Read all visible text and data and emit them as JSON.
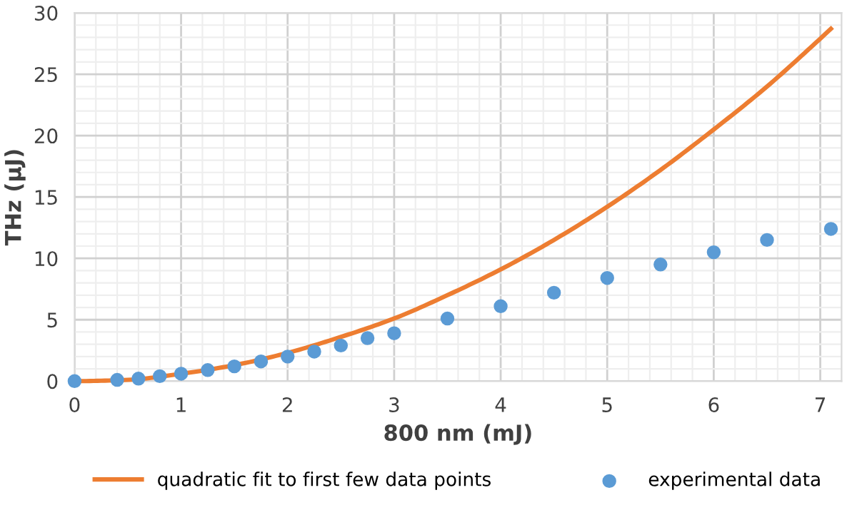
{
  "chart_data": {
    "type": "scatter",
    "xlabel": "800 nm (mJ)",
    "ylabel": "THz (µJ)",
    "xlim": [
      0,
      7.2
    ],
    "xticks": [
      0,
      1,
      2,
      3,
      4,
      5,
      6,
      7
    ],
    "ylim": [
      0,
      30
    ],
    "yticks": [
      0,
      5,
      10,
      15,
      20,
      25,
      30
    ],
    "grid": true,
    "legend": "bottom",
    "series": [
      {
        "name": "quadratic fit to first few data points",
        "type": "line",
        "color": "#ed7d31",
        "line_style": "solid",
        "marker": "none",
        "x": [
          0,
          0.5,
          1,
          1.5,
          2,
          2.5,
          3,
          3.5,
          4,
          4.5,
          5,
          5.5,
          6,
          6.5,
          7,
          7.1
        ],
        "values": [
          0,
          0.1,
          0.6,
          1.3,
          2.3,
          3.6,
          5.1,
          7.0,
          9.1,
          11.5,
          14.2,
          17.2,
          20.5,
          24.0,
          27.9,
          28.7
        ]
      },
      {
        "name": "experimental data",
        "color": "#5b9bd5",
        "marker": "circle",
        "x": [
          0,
          0.4,
          0.6,
          0.8,
          1.0,
          1.25,
          1.5,
          1.75,
          2,
          2.25,
          2.5,
          2.75,
          3,
          3.5,
          4,
          4.5,
          5,
          5.5,
          6,
          6.5,
          7.1
        ],
        "values": [
          0,
          0.1,
          0.2,
          0.4,
          0.6,
          0.9,
          1.2,
          1.6,
          2.0,
          2.4,
          2.9,
          3.5,
          3.9,
          5.1,
          6.1,
          7.2,
          8.4,
          9.5,
          10.5,
          11.5,
          12.4
        ]
      }
    ]
  }
}
